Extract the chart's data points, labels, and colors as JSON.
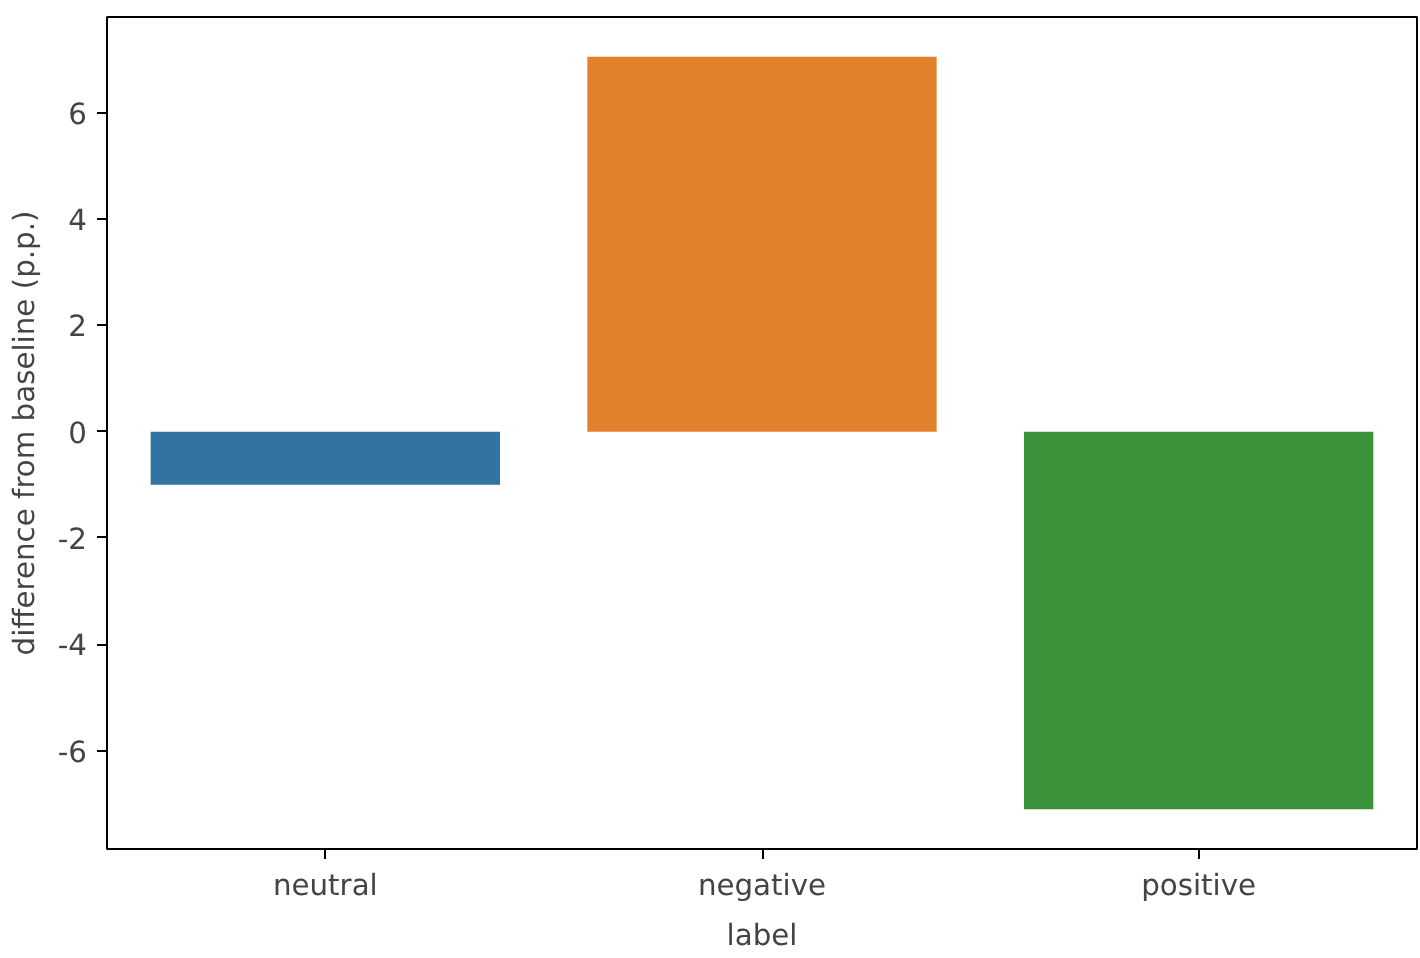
{
  "chart_data": {
    "type": "bar",
    "xlabel": "label",
    "ylabel": "difference from baseline (p.p.)",
    "categories": [
      "neutral",
      "negative",
      "positive"
    ],
    "values": [
      -1.0,
      7.05,
      -7.1
    ],
    "colors": [
      "#3274a1",
      "#e1812c",
      "#3a923a"
    ],
    "ylim": [
      -7.85,
      7.8
    ],
    "yticks": [
      -6,
      -4,
      -2,
      0,
      2,
      4,
      6
    ],
    "grid": false
  }
}
